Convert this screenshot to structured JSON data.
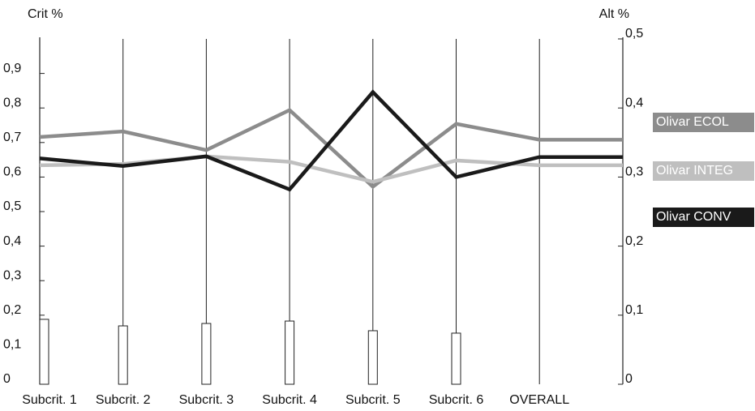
{
  "chart_data": {
    "type": "line",
    "y_label": "Crit %",
    "y2_label": "Alt %",
    "categories": [
      "Subcrit. 1",
      "Subcrit. 2",
      "Subcrit. 3",
      "Subcrit. 4",
      "Subcrit. 5",
      "Subcrit. 6",
      "OVERALL"
    ],
    "bars": {
      "values": [
        0.188,
        0.169,
        0.176,
        0.183,
        0.155,
        0.148,
        null
      ],
      "color": "#ffffff"
    },
    "series": [
      {
        "name": "Olivar ECOL",
        "color": "#8c8c8c",
        "axis": "y2",
        "values": [
          0.358,
          0.366,
          0.339,
          0.397,
          0.286,
          0.377,
          0.354
        ]
      },
      {
        "name": "Olivar INTEG",
        "color": "#bfbfbf",
        "axis": "y2",
        "values": [
          0.317,
          0.319,
          0.33,
          0.322,
          0.293,
          0.324,
          0.317
        ]
      },
      {
        "name": "Olivar CONV",
        "color": "#1a1a1a",
        "axis": "y2",
        "values": [
          0.327,
          0.316,
          0.33,
          0.282,
          0.423,
          0.3,
          0.329
        ]
      }
    ],
    "ylim": [
      0,
      1
    ],
    "yticks": [
      0,
      {
        "value": 0.1,
        "label": "0,1"
      },
      {
        "value": 0.2,
        "label": "0,2"
      },
      {
        "value": 0.3,
        "label": "0,3"
      },
      {
        "value": 0.4,
        "label": "0,4"
      },
      {
        "value": 0.5,
        "label": "0,5"
      },
      {
        "value": 0.6,
        "label": "0,6"
      },
      {
        "value": 0.7,
        "label": "0,7"
      },
      {
        "value": 0.8,
        "label": "0,8"
      },
      {
        "value": 0.9,
        "label": "0,9"
      }
    ],
    "y2lim": [
      0,
      0.5
    ],
    "y2ticks": [
      0,
      {
        "value": 0.1,
        "label": "0,1"
      },
      {
        "value": 0.2,
        "label": "0,2"
      },
      {
        "value": 0.3,
        "label": "0,3"
      },
      {
        "value": 0.4,
        "label": "0,4"
      },
      {
        "value": 0.5,
        "label": "0,5"
      }
    ]
  }
}
